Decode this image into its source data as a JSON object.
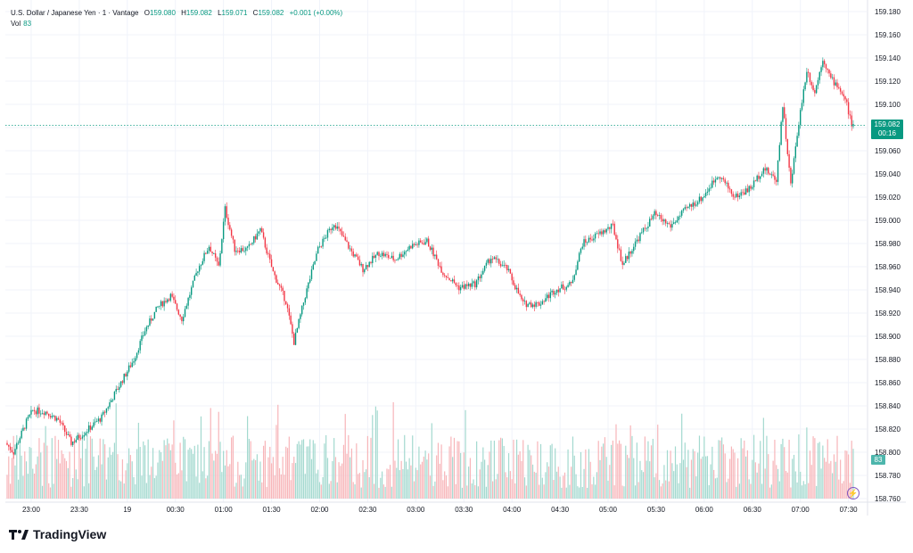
{
  "header": {
    "symbol": "U.S. Dollar / Japanese Yen · 1 · Vantage",
    "o_label": "O",
    "o_value": "159.080",
    "h_label": "H",
    "h_value": "159.082",
    "l_label": "L",
    "l_value": "159.071",
    "c_label": "C",
    "c_value": "159.082",
    "change": "+0.001 (+0.00%)"
  },
  "volume": {
    "label": "Vol",
    "value": "83"
  },
  "price_tag": {
    "price": "159.082",
    "countdown": "00:16"
  },
  "volume_tag": "83",
  "brand": "TradingView",
  "colors": {
    "up": "#089981",
    "down": "#f23645",
    "vol_up": "#a3d9cf",
    "vol_down": "#f7b5b9",
    "grid": "#f0f3fa",
    "accent": "#089981"
  },
  "chart_data": {
    "type": "candlestick",
    "title": "",
    "y_ticks": [
      "159.180",
      "159.160",
      "159.140",
      "159.120",
      "159.100",
      "159.080",
      "159.060",
      "159.040",
      "159.020",
      "159.000",
      "158.980",
      "158.960",
      "158.940",
      "158.920",
      "158.900",
      "158.880",
      "158.860",
      "158.840",
      "158.820",
      "158.800",
      "158.780",
      "158.760"
    ],
    "ylim": [
      158.76,
      159.18
    ],
    "x_ticks": [
      "23:00",
      "23:30",
      "19",
      "00:30",
      "01:00",
      "01:30",
      "02:00",
      "02:30",
      "03:00",
      "03:30",
      "04:00",
      "04:30",
      "05:00",
      "05:30",
      "06:00",
      "06:30",
      "07:00",
      "07:30"
    ],
    "last_price": 159.082,
    "price_path": [
      {
        "time": "22:45",
        "price": 158.808
      },
      {
        "time": "22:50",
        "price": 158.8
      },
      {
        "time": "22:58",
        "price": 158.826
      },
      {
        "time": "23:02",
        "price": 158.836
      },
      {
        "time": "23:10",
        "price": 158.835
      },
      {
        "time": "23:18",
        "price": 158.828
      },
      {
        "time": "23:26",
        "price": 158.808
      },
      {
        "time": "23:35",
        "price": 158.818
      },
      {
        "time": "23:45",
        "price": 158.83
      },
      {
        "time": "23:55",
        "price": 158.855
      },
      {
        "time": "00:05",
        "price": 158.88
      },
      {
        "time": "00:12",
        "price": 158.905
      },
      {
        "time": "00:20",
        "price": 158.925
      },
      {
        "time": "00:28",
        "price": 158.935
      },
      {
        "time": "00:35",
        "price": 158.915
      },
      {
        "time": "00:45",
        "price": 158.958
      },
      {
        "time": "00:52",
        "price": 158.978
      },
      {
        "time": "00:58",
        "price": 158.96
      },
      {
        "time": "01:02",
        "price": 159.01
      },
      {
        "time": "01:08",
        "price": 158.975
      },
      {
        "time": "01:16",
        "price": 158.975
      },
      {
        "time": "01:24",
        "price": 158.992
      },
      {
        "time": "01:32",
        "price": 158.955
      },
      {
        "time": "01:40",
        "price": 158.93
      },
      {
        "time": "01:45",
        "price": 158.895
      },
      {
        "time": "01:52",
        "price": 158.935
      },
      {
        "time": "02:00",
        "price": 158.975
      },
      {
        "time": "02:10",
        "price": 158.998
      },
      {
        "time": "02:20",
        "price": 158.975
      },
      {
        "time": "02:28",
        "price": 158.958
      },
      {
        "time": "02:38",
        "price": 158.972
      },
      {
        "time": "02:48",
        "price": 158.966
      },
      {
        "time": "02:58",
        "price": 158.978
      },
      {
        "time": "03:08",
        "price": 158.982
      },
      {
        "time": "03:18",
        "price": 158.955
      },
      {
        "time": "03:28",
        "price": 158.942
      },
      {
        "time": "03:38",
        "price": 158.945
      },
      {
        "time": "03:48",
        "price": 158.968
      },
      {
        "time": "03:58",
        "price": 158.958
      },
      {
        "time": "04:08",
        "price": 158.928
      },
      {
        "time": "04:18",
        "price": 158.928
      },
      {
        "time": "04:28",
        "price": 158.94
      },
      {
        "time": "04:38",
        "price": 158.945
      },
      {
        "time": "04:45",
        "price": 158.98
      },
      {
        "time": "04:55",
        "price": 158.988
      },
      {
        "time": "05:04",
        "price": 158.995
      },
      {
        "time": "05:10",
        "price": 158.962
      },
      {
        "time": "05:20",
        "price": 158.985
      },
      {
        "time": "05:30",
        "price": 159.005
      },
      {
        "time": "05:40",
        "price": 158.995
      },
      {
        "time": "05:50",
        "price": 159.01
      },
      {
        "time": "06:00",
        "price": 159.02
      },
      {
        "time": "06:10",
        "price": 159.04
      },
      {
        "time": "06:20",
        "price": 159.02
      },
      {
        "time": "06:30",
        "price": 159.028
      },
      {
        "time": "06:38",
        "price": 159.045
      },
      {
        "time": "06:46",
        "price": 159.035
      },
      {
        "time": "06:50",
        "price": 159.1
      },
      {
        "time": "06:55",
        "price": 159.03
      },
      {
        "time": "07:00",
        "price": 159.085
      },
      {
        "time": "07:05",
        "price": 159.13
      },
      {
        "time": "07:10",
        "price": 159.11
      },
      {
        "time": "07:15",
        "price": 159.14
      },
      {
        "time": "07:20",
        "price": 159.122
      },
      {
        "time": "07:25",
        "price": 159.115
      },
      {
        "time": "07:30",
        "price": 159.1
      },
      {
        "time": "07:33",
        "price": 159.082
      }
    ]
  }
}
